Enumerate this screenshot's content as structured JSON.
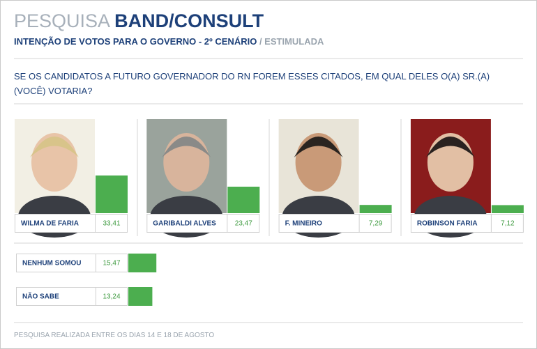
{
  "chart_data": {
    "type": "bar",
    "title": {
      "prefix": "PESQUISA",
      "main": "BAND/CONSULT"
    },
    "subtitle": {
      "main": "INTENÇÃO DE VOTOS PARA O GOVERNO - 2º CENÁRIO",
      "suffix": "/ ESTIMULADA"
    },
    "question": "SE OS CANDIDATOS A FUTURO GOVERNADOR DO RN FOREM ESSES CITADOS, EM QUAL DELES O(A) SR.(A) (VOCÊ) VOTARIA?",
    "categories": [
      "WILMA DE FARIA",
      "GARIBALDI ALVES",
      "F. MINEIRO",
      "ROBINSON FARIA",
      "NENHUM SOMOU",
      "NÃO SABE"
    ],
    "values": [
      33.41,
      23.47,
      7.29,
      7.12,
      15.47,
      13.24
    ],
    "value_labels": [
      "33,41",
      "23,47",
      "7,29",
      "7,12",
      "15,47",
      "13,24"
    ],
    "color": "#4cae4f",
    "note": "PESQUISA REALIZADA ENTRE OS DIAS 14 E 18 DE AGOSTO"
  }
}
